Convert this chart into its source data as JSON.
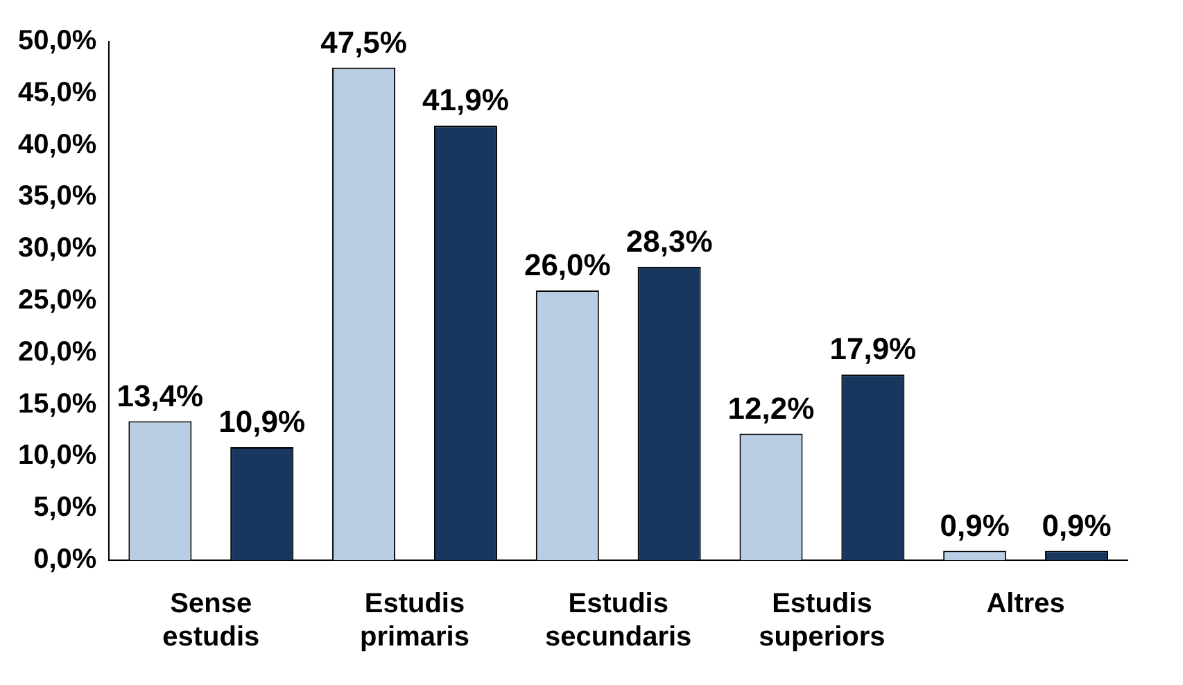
{
  "chart_data": {
    "type": "bar",
    "categories": [
      "Sense estudis",
      "Estudis primaris",
      "Estudis secundaris",
      "Estudis superiors",
      "Altres"
    ],
    "series": [
      {
        "color": "#b9cde5",
        "values": [
          13.4,
          47.5,
          26.0,
          12.2,
          0.9
        ],
        "value_labels": [
          "13,4%",
          "47,5%",
          "26,0%",
          "12,2%",
          "0,9%"
        ]
      },
      {
        "color": "#17375e",
        "values": [
          10.9,
          41.9,
          28.3,
          17.9,
          0.9
        ],
        "value_labels": [
          "10,9%",
          "41,9%",
          "28,3%",
          "17,9%",
          "0,9%"
        ]
      }
    ],
    "ylim": [
      0,
      50
    ],
    "yticks": [
      {
        "value": 0,
        "label": "0,0%"
      },
      {
        "value": 5,
        "label": "5,0%"
      },
      {
        "value": 10,
        "label": "10,0%"
      },
      {
        "value": 15,
        "label": "15,0%"
      },
      {
        "value": 20,
        "label": "20,0%"
      },
      {
        "value": 25,
        "label": "25,0%"
      },
      {
        "value": 30,
        "label": "30,0%"
      },
      {
        "value": 35,
        "label": "35,0%"
      },
      {
        "value": 40,
        "label": "40,0%"
      },
      {
        "value": 45,
        "label": "45,0%"
      },
      {
        "value": 50,
        "label": "50,0%"
      }
    ],
    "grid": false,
    "legend": false
  }
}
